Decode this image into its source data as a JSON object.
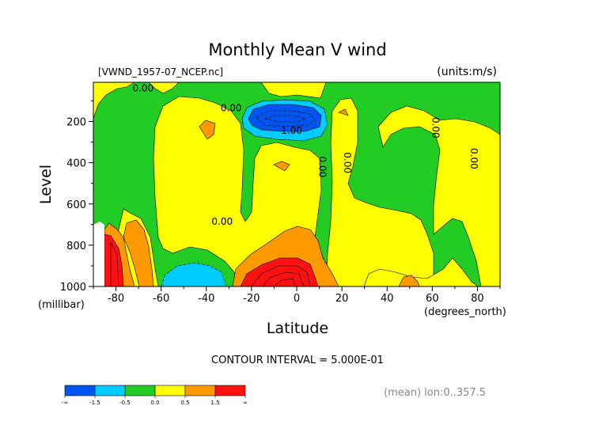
{
  "chart_data": {
    "type": "contour",
    "title": "Monthly Mean V wind",
    "dataset_label": "[VWND_1957-07_NCEP.nc]",
    "units_label": "(units:m/s)",
    "xlabel": "Latitude",
    "x_units": "(degrees_north)",
    "ylabel": "Level",
    "y_units": "(millibar)",
    "x_range": [
      -90,
      90
    ],
    "y_range": [
      1000,
      10
    ],
    "y_inverted": true,
    "x_ticks": [
      -80,
      -60,
      -40,
      -20,
      0,
      20,
      40,
      60,
      80
    ],
    "y_ticks": [
      200,
      400,
      600,
      800,
      1000
    ],
    "contour_interval_text": "CONTOUR INTERVAL = 5.000E-01",
    "mean_note": "(mean) lon:0..357.5",
    "contour_labels": [
      {
        "text": "0.00",
        "x": -68,
        "y": 55
      },
      {
        "text": "0.00",
        "x": -29,
        "y": 150
      },
      {
        "text": "0.00",
        "x": 10,
        "y": 420
      },
      {
        "text": "0.00",
        "x": 21,
        "y": 400
      },
      {
        "text": "0.00",
        "x": 60,
        "y": 230
      },
      {
        "text": "0.00",
        "x": 77,
        "y": 380
      },
      {
        "text": "0.00",
        "x": -33,
        "y": 700
      },
      {
        "text": "-1.00",
        "x": -3,
        "y": 260
      }
    ],
    "legend": {
      "colors": [
        "#0055ee",
        "#00ccff",
        "#22cc22",
        "#ffff00",
        "#ff9900",
        "#ff1111"
      ],
      "labels": [
        "-∞",
        "-1.5",
        "-0.5",
        "0.0",
        "0.5",
        "1.5",
        "∞"
      ]
    },
    "fill_colors": {
      "strong_negative": "#0055ee",
      "negative": "#00ccff",
      "weak_negative": "#22cc22",
      "weak_positive": "#ffff00",
      "positive": "#ff9900",
      "strong_positive": "#ff1111"
    }
  }
}
